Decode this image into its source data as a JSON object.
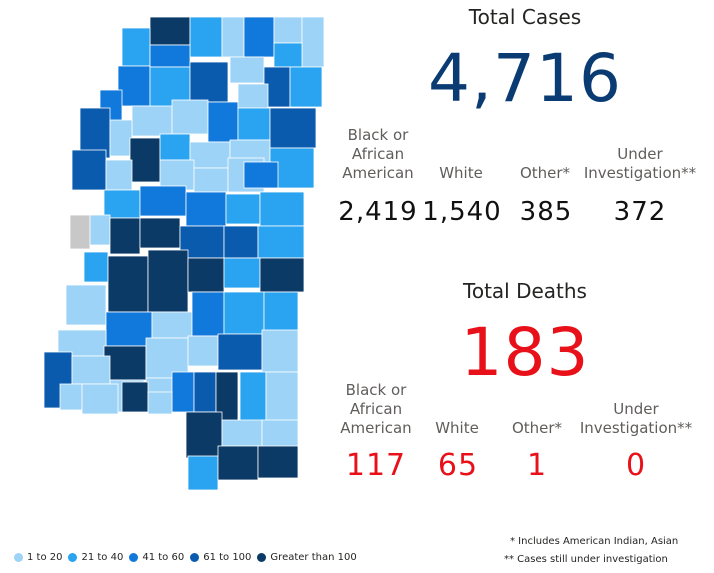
{
  "cases": {
    "title": "Total Cases",
    "total": "4,716",
    "breakdown": [
      {
        "label": "Black or African American",
        "value": "2,419"
      },
      {
        "label": "White",
        "value": "1,540"
      },
      {
        "label": "Other*",
        "value": "385"
      },
      {
        "label": "Under Investigation**",
        "value": "372"
      }
    ]
  },
  "deaths": {
    "title": "Total Deaths",
    "total": "183",
    "breakdown": [
      {
        "label": "Black or African American",
        "value": "117"
      },
      {
        "label": "White",
        "value": "65"
      },
      {
        "label": "Other*",
        "value": "1"
      },
      {
        "label": "Under Investigation**",
        "value": "0"
      }
    ]
  },
  "legend": {
    "items": [
      {
        "label": "1 to 20",
        "color": "#9dd3f7"
      },
      {
        "label": "21 to 40",
        "color": "#2aa4f0"
      },
      {
        "label": "41 to 60",
        "color": "#1178dc"
      },
      {
        "label": "61 to 100",
        "color": "#0a5aae"
      },
      {
        "label": "Greater than 100",
        "color": "#0b3a66"
      }
    ]
  },
  "footnotes": {
    "note1": "* Includes American Indian, Asian",
    "note2": "** Cases still under investigation"
  },
  "map": {
    "colors": {
      "no_data": "#c8c8c8",
      "border": "#8a9aa8"
    }
  }
}
